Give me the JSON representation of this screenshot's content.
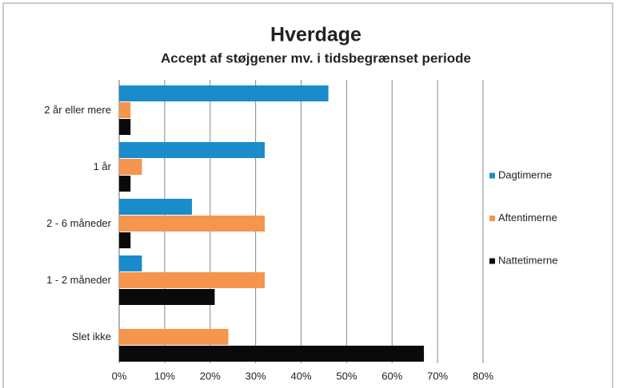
{
  "chart_data": {
    "type": "hbar",
    "title": "Hverdage",
    "subtitle": "Accept af støjgener mv. i tidsbegrænset periode",
    "categories": [
      "2 år eller mere",
      "1 år",
      "2 - 6 måneder",
      "1 - 2 måneder",
      "Slet ikke"
    ],
    "series": [
      {
        "name": "Dagtimerne",
        "color": "#1a8ccc",
        "values": [
          46,
          32,
          16,
          5,
          0
        ]
      },
      {
        "name": "Aftentimerne",
        "color": "#f5954e",
        "values": [
          2.5,
          5,
          32,
          32,
          24
        ]
      },
      {
        "name": "Nattetimerne",
        "color": "#0a0a0a",
        "values": [
          2.5,
          2.5,
          2.5,
          21,
          67
        ]
      }
    ],
    "xlim": [
      0,
      80
    ],
    "xticks": [
      {
        "value": 0,
        "label": "0%"
      },
      {
        "value": 10,
        "label": "10%"
      },
      {
        "value": 20,
        "label": "20%"
      },
      {
        "value": 30,
        "label": "30%"
      },
      {
        "value": 40,
        "label": "40%"
      },
      {
        "value": 50,
        "label": "50%"
      },
      {
        "value": 60,
        "label": "60%"
      },
      {
        "value": 70,
        "label": "70%"
      },
      {
        "value": 80,
        "label": "80%"
      }
    ],
    "grid": true,
    "legend": "right"
  }
}
